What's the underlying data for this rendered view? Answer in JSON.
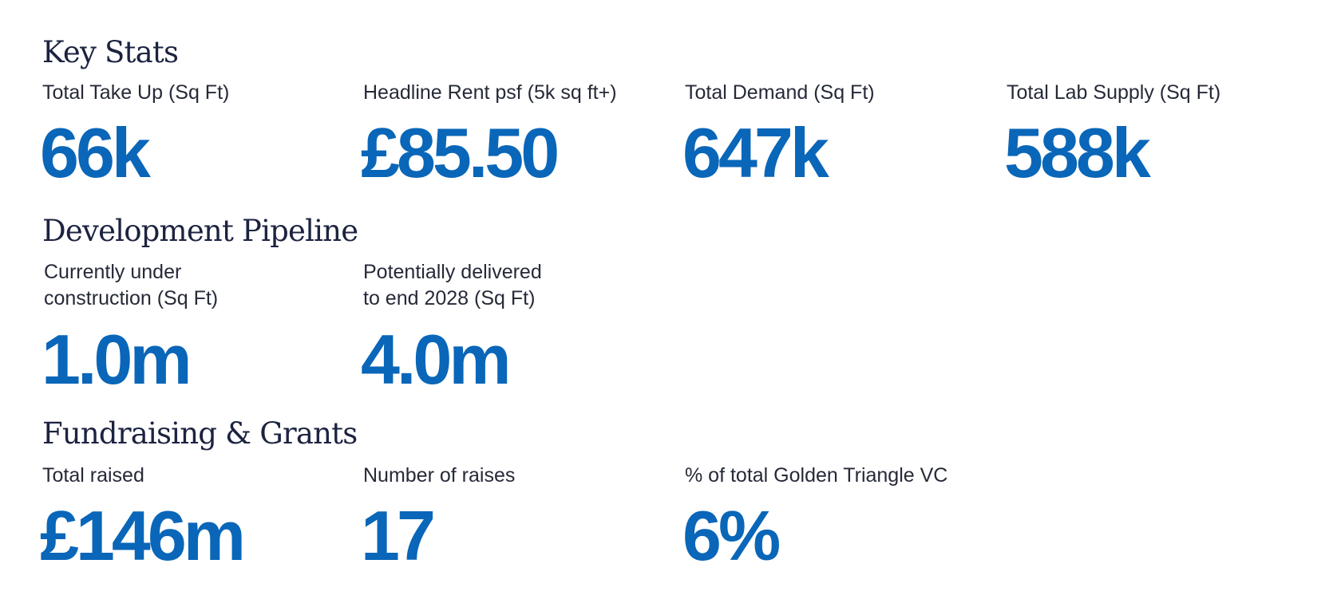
{
  "sections": {
    "key_stats": {
      "title": "Key Stats",
      "items": [
        {
          "label": "Total Take Up (Sq Ft)",
          "value": "66k"
        },
        {
          "label": "Headline Rent psf (5k sq ft+)",
          "value": "£85.50"
        },
        {
          "label": "Total Demand (Sq Ft)",
          "value": "647k"
        },
        {
          "label": "Total Lab Supply (Sq Ft)",
          "value": "588k"
        }
      ]
    },
    "development_pipeline": {
      "title": "Development Pipeline",
      "items": [
        {
          "label_lines": [
            "Currently under",
            "construction (Sq Ft)"
          ],
          "value": "1.0m"
        },
        {
          "label_lines": [
            "Potentially delivered",
            "to end 2028 (Sq Ft)"
          ],
          "value": "4.0m"
        }
      ]
    },
    "fundraising_grants": {
      "title": "Fundraising & Grants",
      "items": [
        {
          "label": "Total raised",
          "value": "£146m"
        },
        {
          "label": "Number of raises",
          "value": "17"
        },
        {
          "label": "% of total Golden Triangle VC",
          "value": "6%"
        }
      ]
    }
  },
  "colors": {
    "value_blue": "#0a66b8",
    "heading_navy": "#1c2340",
    "label_text": "#262a38",
    "background": "#ffffff"
  }
}
